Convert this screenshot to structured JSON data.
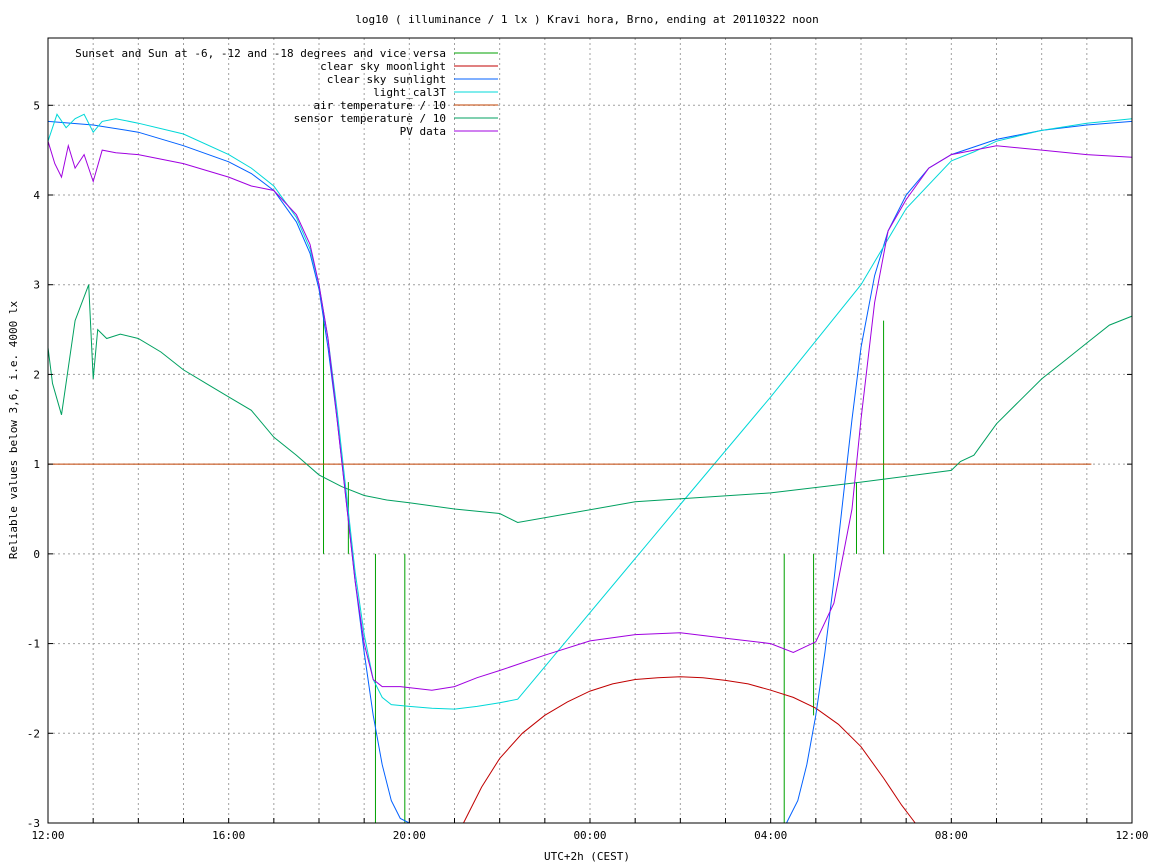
{
  "chart_data": {
    "type": "line",
    "title": "log10 ( illuminance / 1 lx ) Kravi hora, Brno, ending at 20110322 noon",
    "xlabel": "UTC+2h (CEST)",
    "ylabel": "Reliable values below 3,6, i.e. 4000 lx",
    "xlim": [
      0,
      24
    ],
    "ylim": [
      -3,
      5.75
    ],
    "x_ticks": [
      {
        "x": 0,
        "label": "12:00"
      },
      {
        "x": 1,
        "label": ""
      },
      {
        "x": 2,
        "label": ""
      },
      {
        "x": 3,
        "label": ""
      },
      {
        "x": 4,
        "label": "16:00"
      },
      {
        "x": 5,
        "label": ""
      },
      {
        "x": 6,
        "label": ""
      },
      {
        "x": 7,
        "label": ""
      },
      {
        "x": 8,
        "label": "20:00"
      },
      {
        "x": 9,
        "label": ""
      },
      {
        "x": 10,
        "label": ""
      },
      {
        "x": 11,
        "label": ""
      },
      {
        "x": 12,
        "label": "00:00"
      },
      {
        "x": 13,
        "label": ""
      },
      {
        "x": 14,
        "label": ""
      },
      {
        "x": 15,
        "label": ""
      },
      {
        "x": 16,
        "label": "04:00"
      },
      {
        "x": 17,
        "label": ""
      },
      {
        "x": 18,
        "label": ""
      },
      {
        "x": 19,
        "label": ""
      },
      {
        "x": 20,
        "label": "08:00"
      },
      {
        "x": 21,
        "label": ""
      },
      {
        "x": 22,
        "label": ""
      },
      {
        "x": 23,
        "label": ""
      },
      {
        "x": 24,
        "label": "12:00"
      }
    ],
    "y_ticks": [
      {
        "y": -3,
        "label": "-3"
      },
      {
        "y": -2,
        "label": "-2"
      },
      {
        "y": -1,
        "label": "-1"
      },
      {
        "y": 0,
        "label": "0"
      },
      {
        "y": 1,
        "label": "1"
      },
      {
        "y": 2,
        "label": "2"
      },
      {
        "y": 3,
        "label": "3"
      },
      {
        "y": 4,
        "label": "4"
      },
      {
        "y": 5,
        "label": "5"
      }
    ],
    "grid": true,
    "legend_position": "top-left",
    "series": [
      {
        "name": "Sunset and Sun at -6, -12 and -18 degrees and vice versa",
        "color": "#00a000",
        "style": "vertical-markers",
        "markers": [
          {
            "x": 6.1,
            "y0": 0,
            "y1": 2.7
          },
          {
            "x": 6.65,
            "y0": 0,
            "y1": 0.8
          },
          {
            "x": 7.25,
            "y0": 0,
            "y1": -3
          },
          {
            "x": 7.9,
            "y0": 0,
            "y1": -3
          },
          {
            "x": 16.3,
            "y0": 0,
            "y1": -3
          },
          {
            "x": 16.95,
            "y0": 0,
            "y1": -1.8
          },
          {
            "x": 17.9,
            "y0": 0,
            "y1": 0.8
          },
          {
            "x": 18.5,
            "y0": 0,
            "y1": 2.6
          }
        ]
      },
      {
        "name": "clear sky moonlight",
        "color": "#c00000",
        "x": [
          9.2,
          9.6,
          10.0,
          10.5,
          11.0,
          11.5,
          12.0,
          12.5,
          13.0,
          13.5,
          14.0,
          14.5,
          15.0,
          15.5,
          16.0,
          16.5,
          17.0,
          17.5,
          18.0,
          18.5,
          18.9,
          19.2
        ],
        "y": [
          -3.0,
          -2.6,
          -2.28,
          -2.0,
          -1.8,
          -1.65,
          -1.53,
          -1.45,
          -1.4,
          -1.38,
          -1.37,
          -1.38,
          -1.41,
          -1.45,
          -1.52,
          -1.6,
          -1.72,
          -1.9,
          -2.15,
          -2.5,
          -2.8,
          -3.0
        ]
      },
      {
        "name": "clear sky sunlight",
        "color": "#0060ff",
        "x": [
          0,
          1,
          2,
          3,
          4,
          4.5,
          5,
          5.5,
          5.8,
          6.0,
          6.2,
          6.4,
          6.6,
          6.8,
          7.0,
          7.2,
          7.4,
          7.6,
          7.8,
          8.0,
          16.35,
          16.6,
          16.8,
          17.0,
          17.2,
          17.4,
          17.6,
          17.8,
          18.0,
          18.3,
          18.6,
          19.0,
          19.5,
          20.0,
          21,
          22,
          23,
          24
        ],
        "y": [
          4.82,
          4.78,
          4.7,
          4.55,
          4.37,
          4.24,
          4.05,
          3.7,
          3.35,
          2.95,
          2.3,
          1.5,
          0.6,
          -0.3,
          -1.1,
          -1.8,
          -2.35,
          -2.75,
          -2.95,
          -3.0,
          -3.0,
          -2.75,
          -2.35,
          -1.8,
          -1.1,
          -0.3,
          0.6,
          1.5,
          2.3,
          3.1,
          3.6,
          4.0,
          4.3,
          4.45,
          4.62,
          4.72,
          4.78,
          4.82
        ]
      },
      {
        "name": "light_cal3T",
        "color": "#00d8d8",
        "x": [
          0,
          0.2,
          0.4,
          0.6,
          0.8,
          1.0,
          1.2,
          1.5,
          2,
          3,
          4,
          4.5,
          5,
          5.5,
          5.8,
          6.0,
          6.2,
          6.4,
          6.6,
          6.8,
          7.0,
          7.2,
          7.4,
          7.6,
          8.0,
          8.5,
          9.0,
          9.5,
          10.0,
          10.4,
          14.0,
          16.0,
          18.0,
          19.0,
          20.0,
          20.5,
          21,
          22,
          23,
          24
        ],
        "y": [
          4.6,
          4.9,
          4.75,
          4.85,
          4.9,
          4.7,
          4.82,
          4.85,
          4.8,
          4.68,
          4.45,
          4.3,
          4.1,
          3.75,
          3.4,
          3.0,
          2.4,
          1.6,
          0.7,
          -0.2,
          -0.9,
          -1.4,
          -1.6,
          -1.68,
          -1.7,
          -1.72,
          -1.73,
          -1.7,
          -1.66,
          -1.62,
          0.55,
          1.75,
          3.0,
          3.85,
          4.38,
          4.48,
          4.6,
          4.72,
          4.8,
          4.85
        ]
      },
      {
        "name": "air temperature / 10",
        "color": "#c04000",
        "x": [
          0,
          23.1
        ],
        "y": [
          1.0,
          1.0
        ]
      },
      {
        "name": "sensor temperature / 10",
        "color": "#00a060",
        "x": [
          0,
          0.1,
          0.3,
          0.6,
          0.9,
          1.0,
          1.1,
          1.3,
          1.6,
          2.0,
          2.5,
          3,
          3.5,
          4.0,
          4.5,
          5,
          5.5,
          6,
          6.5,
          7,
          7.5,
          8,
          9,
          10.0,
          10.4,
          13.0,
          16.0,
          18.0,
          20.0,
          20.2,
          20.5,
          21,
          21.5,
          22,
          22.5,
          23,
          23.5,
          24
        ],
        "y": [
          2.3,
          1.9,
          1.55,
          2.6,
          3.0,
          1.95,
          2.5,
          2.4,
          2.45,
          2.4,
          2.25,
          2.05,
          1.9,
          1.75,
          1.6,
          1.3,
          1.1,
          0.88,
          0.75,
          0.65,
          0.6,
          0.57,
          0.5,
          0.45,
          0.35,
          0.58,
          0.68,
          0.8,
          0.93,
          1.03,
          1.1,
          1.45,
          1.7,
          1.95,
          2.15,
          2.35,
          2.55,
          2.65
        ]
      },
      {
        "name": "PV data",
        "color": "#a000e0",
        "x": [
          0,
          0.15,
          0.3,
          0.45,
          0.6,
          0.8,
          1.0,
          1.2,
          1.5,
          2,
          3,
          4,
          4.5,
          5,
          5.5,
          5.8,
          6.0,
          6.2,
          6.4,
          6.6,
          6.8,
          7.0,
          7.2,
          7.4,
          7.8,
          8.5,
          9.0,
          9.5,
          10.0,
          11,
          12,
          13,
          14,
          15,
          16,
          16.5,
          17.0,
          17.4,
          17.8,
          18.0,
          18.3,
          18.6,
          19.0,
          19.5,
          20.0,
          21,
          22,
          23,
          24
        ],
        "y": [
          4.6,
          4.35,
          4.2,
          4.55,
          4.3,
          4.45,
          4.15,
          4.5,
          4.47,
          4.45,
          4.35,
          4.2,
          4.1,
          4.05,
          3.78,
          3.45,
          3.0,
          2.4,
          1.5,
          0.6,
          -0.3,
          -1.0,
          -1.4,
          -1.48,
          -1.48,
          -1.52,
          -1.48,
          -1.38,
          -1.3,
          -1.13,
          -0.97,
          -0.9,
          -0.88,
          -0.94,
          -1.0,
          -1.1,
          -0.98,
          -0.55,
          0.5,
          1.5,
          2.8,
          3.6,
          3.95,
          4.3,
          4.45,
          4.55,
          4.5,
          4.45,
          4.42
        ]
      }
    ]
  }
}
